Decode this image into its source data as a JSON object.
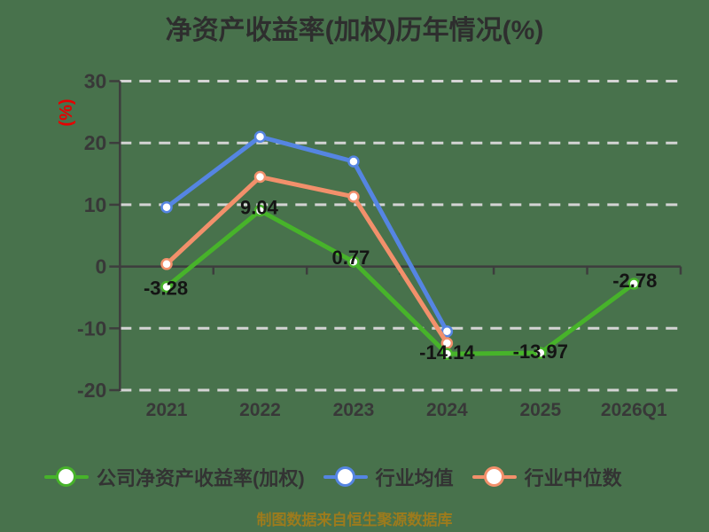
{
  "title": "净资产收益率(加权)历年情况(%)",
  "y_axis": {
    "unit": "(%)",
    "tick_labels": [
      "30",
      "20",
      "10",
      "0",
      "-10",
      "-20"
    ],
    "tick_values": [
      30,
      20,
      10,
      0,
      -10,
      -20
    ]
  },
  "x_axis": {
    "categories": [
      "2021",
      "2022",
      "2023",
      "2024",
      "2025",
      "2026Q1"
    ]
  },
  "chart_data": {
    "type": "line",
    "title": "净资产收益率(加权)历年情况(%)",
    "ylabel": "(%)",
    "ylim": [
      -20,
      30
    ],
    "grid": true,
    "legend_position": "bottom",
    "categories": [
      "2021",
      "2022",
      "2023",
      "2024",
      "2025",
      "2026Q1"
    ],
    "series": [
      {
        "name": "公司净资产收益率(加权)",
        "color": "#47b32a",
        "values": [
          -3.28,
          9.04,
          0.77,
          -14.14,
          -13.97,
          -2.78
        ],
        "point_labels": [
          "-3.28",
          "9.04",
          "0.77",
          "-14.14",
          "-13.97",
          "-2.78"
        ]
      },
      {
        "name": "行业均值",
        "color": "#5585e2",
        "values": [
          9.6,
          21.0,
          17.0,
          -10.5,
          null,
          null
        ],
        "point_labels": []
      },
      {
        "name": "行业中位数",
        "color": "#f2906b",
        "values": [
          0.4,
          14.5,
          11.3,
          -12.4,
          null,
          null
        ],
        "point_labels": []
      }
    ]
  },
  "legend": {
    "items": [
      {
        "label": "公司净资产收益率(加权)",
        "color": "#47b32a"
      },
      {
        "label": "行业均值",
        "color": "#5585e2"
      },
      {
        "label": "行业中位数",
        "color": "#f2906b"
      }
    ]
  },
  "footer": {
    "text": "制图数据来自恒生聚源数据库"
  },
  "colors": {
    "background": "#48724c",
    "grid": "#d4d4d4",
    "axis": "#3d3d3d",
    "tick_text": "#383838",
    "data_label": "#141414",
    "unit_text": "#e60000",
    "footer_text": "#9c7b1d"
  }
}
